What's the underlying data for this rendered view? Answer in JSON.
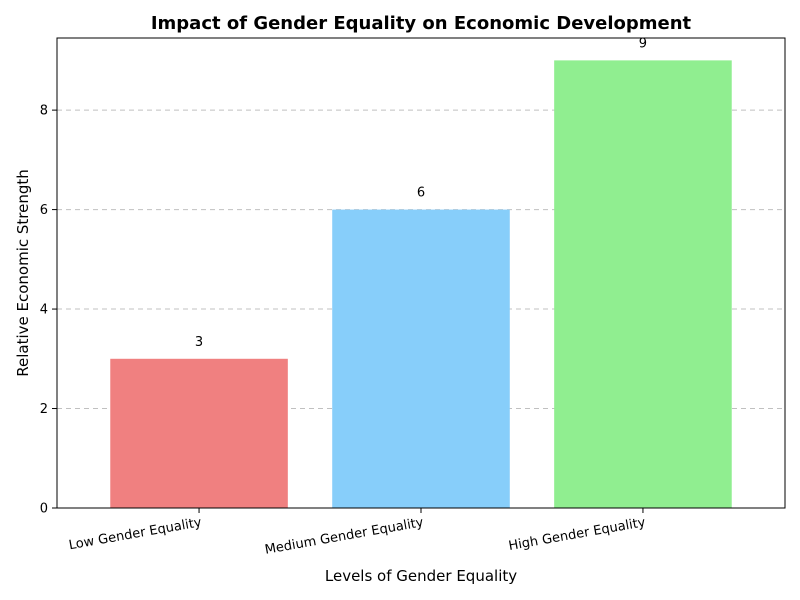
{
  "chart_data": {
    "type": "bar",
    "title": "Impact of Gender Equality on Economic Development",
    "xlabel": "Levels of Gender Equality",
    "ylabel": "Relative Economic Strength",
    "categories": [
      "Low Gender Equality",
      "Medium Gender Equality",
      "High Gender Equality"
    ],
    "values": [
      3,
      6,
      9
    ],
    "colors": [
      "#f08080",
      "#87cefa",
      "#90ee90"
    ],
    "ylim": [
      0,
      9.45
    ],
    "yticks": [
      0,
      2,
      4,
      6,
      8
    ],
    "grid": "y-dashed",
    "data_labels": true
  }
}
